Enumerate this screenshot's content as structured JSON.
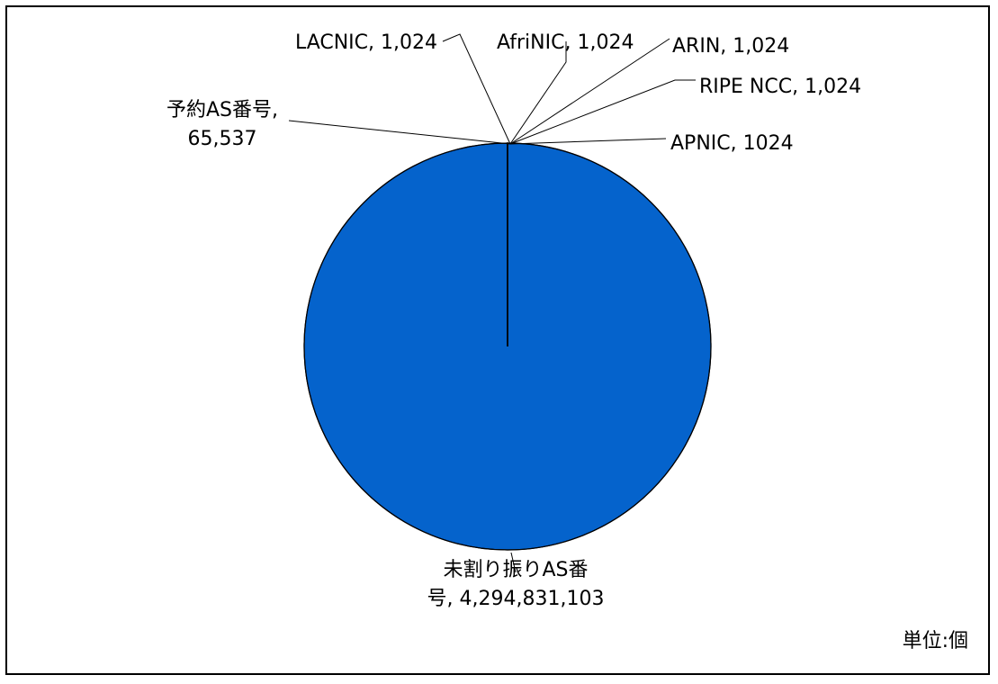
{
  "chart_data": {
    "type": "pie",
    "slices": [
      {
        "label": "未割り振りAS番",
        "label2": "号, 4,294,831,103",
        "value": 4294831103
      },
      {
        "label": "APNIC, 1024",
        "value": 1024
      },
      {
        "label": "RIPE NCC, 1,024",
        "value": 1024
      },
      {
        "label": "ARIN, 1,024",
        "value": 1024
      },
      {
        "label": "AfriNIC, 1,024",
        "value": 1024
      },
      {
        "label": "LACNIC, 1,024",
        "value": 1024
      },
      {
        "label": "予約AS番号,",
        "label2": "65,537",
        "value": 65537
      }
    ],
    "fill_color": "#0563CC",
    "edge_color": "#000000",
    "legend": "none"
  },
  "unit_label": "単位:個"
}
